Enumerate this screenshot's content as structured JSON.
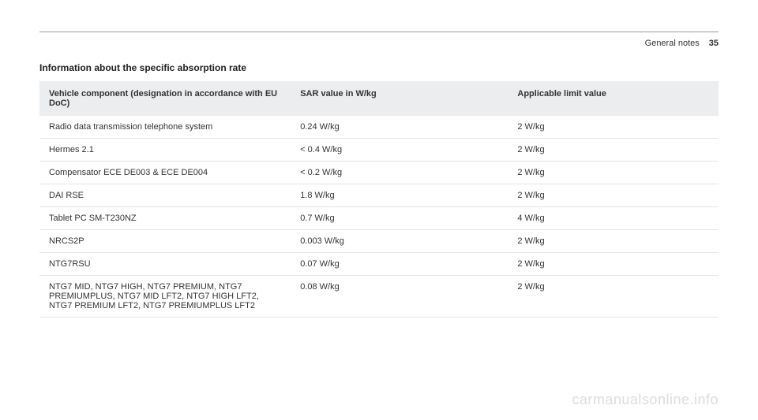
{
  "header": {
    "section": "General notes",
    "page": "35"
  },
  "table": {
    "title": "Information about the specific absorption rate",
    "columns": [
      "Vehicle component (designation in accordance with EU DoC)",
      "SAR value in W/kg",
      "Applicable limit value"
    ],
    "rows": [
      [
        "Radio data transmission telephone system",
        "0.24 W/kg",
        "2 W/kg"
      ],
      [
        "Hermes 2.1",
        "< 0.4 W/kg",
        "2 W/kg"
      ],
      [
        "Compensator ECE DE003 & ECE DE004",
        "< 0.2 W/kg",
        "2 W/kg"
      ],
      [
        "DAI RSE",
        "1.8 W/kg",
        "2 W/kg"
      ],
      [
        "Tablet PC SM-T230NZ",
        "0.7 W/kg",
        "4 W/kg"
      ],
      [
        "NRCS2P",
        "0.003 W/kg",
        "2 W/kg"
      ],
      [
        "NTG7RSU",
        "0.07 W/kg",
        "2 W/kg"
      ],
      [
        "NTG7 MID, NTG7 HIGH, NTG7 PREMIUM, NTG7 PREMIUMPLUS, NTG7 MID LFT2, NTG7 HIGH LFT2, NTG7 PREMIUM LFT2, NTG7 PREMIUMPLUS LFT2",
        "0.08 W/kg",
        "2 W/kg"
      ]
    ]
  },
  "watermark": "carmanualsonline.info"
}
